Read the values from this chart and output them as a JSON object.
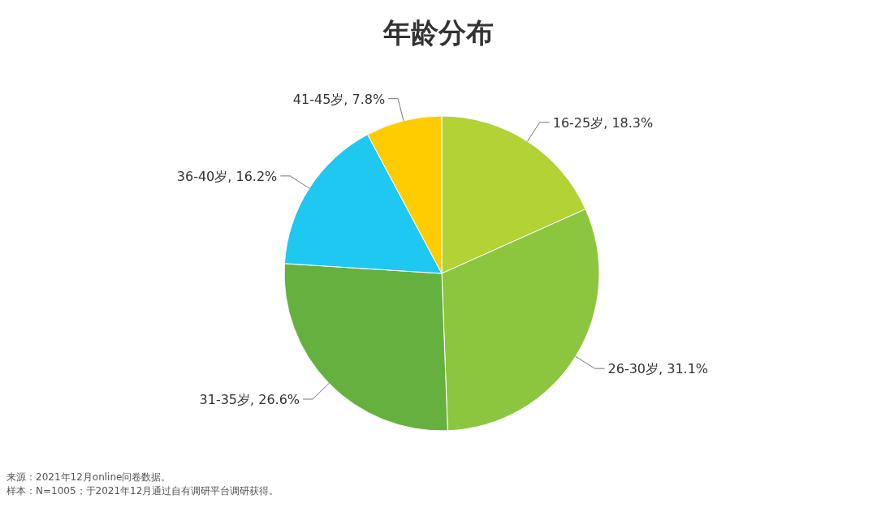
{
  "chart_data": {
    "type": "pie",
    "title": "年龄分布",
    "categories": [
      "16-25岁",
      "26-30岁",
      "31-35岁",
      "36-40岁",
      "41-45岁"
    ],
    "values": [
      18.3,
      31.1,
      26.6,
      16.2,
      7.8
    ],
    "colors": [
      "#b2d235",
      "#8cc63f",
      "#66b040",
      "#1ec8f0",
      "#ffcc00"
    ],
    "value_labels": [
      ", 18.3%",
      ", 31.1%",
      ", 26.6%",
      ", 16.2%",
      ", 7.8%"
    ],
    "annotations": [
      "来源：2021年12月online问卷数据。",
      "样本：N=1005；于2021年12月通过自有调研平台调研获得。"
    ]
  }
}
